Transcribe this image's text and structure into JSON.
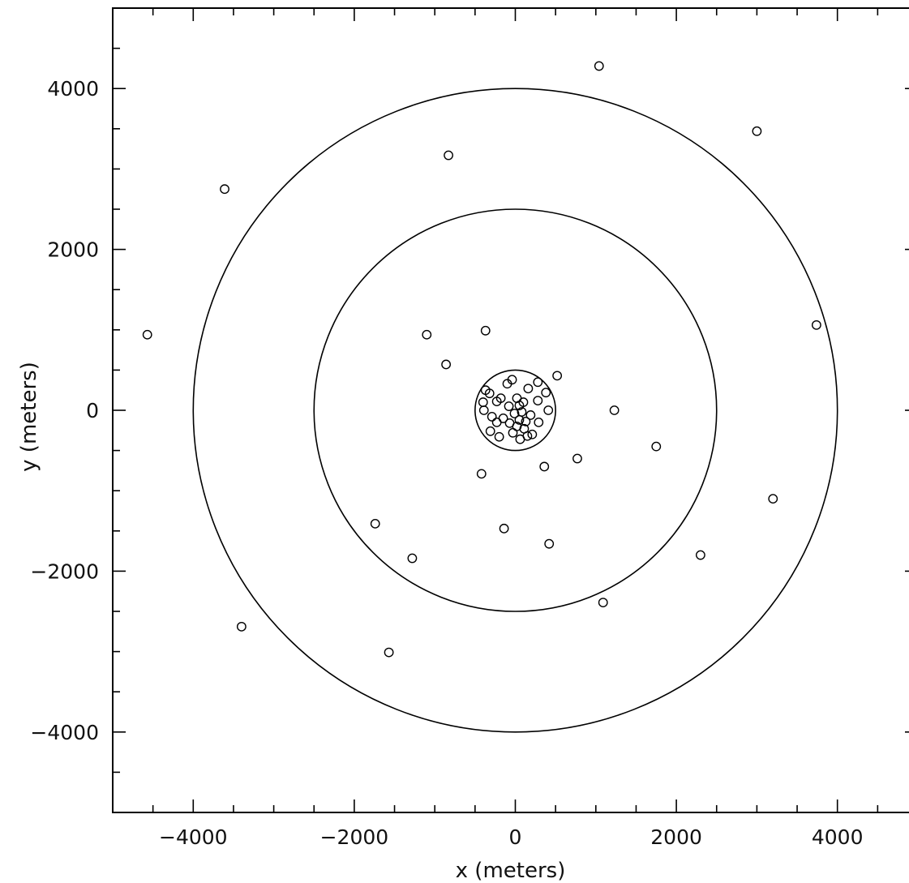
{
  "chart_data": {
    "type": "scatter",
    "xlabel": "x (meters)",
    "ylabel": "y (meters)",
    "xlim": [
      -5000,
      5000
    ],
    "ylim": [
      -5000,
      5000
    ],
    "x_major_ticks": [
      -4000,
      -2000,
      0,
      2000,
      4000
    ],
    "y_major_ticks": [
      -4000,
      -2000,
      0,
      2000,
      4000
    ],
    "x_tick_labels": [
      "−4000",
      "−2000",
      "0",
      "2000",
      "4000"
    ],
    "y_tick_labels": [
      "−4000",
      "−2000",
      "0",
      "2000",
      "4000"
    ],
    "minor_tick_step": 500,
    "grid": false,
    "rings": [
      {
        "cx": 0,
        "cy": 0,
        "r": 500
      },
      {
        "cx": 0,
        "cy": 0,
        "r": 2500
      },
      {
        "cx": 0,
        "cy": 0,
        "r": 4000
      }
    ],
    "points": [
      {
        "x": 1040,
        "y": 4280
      },
      {
        "x": 3000,
        "y": 3470
      },
      {
        "x": -830,
        "y": 3170
      },
      {
        "x": -3610,
        "y": 2750
      },
      {
        "x": 3740,
        "y": 1060
      },
      {
        "x": -4570,
        "y": 940
      },
      {
        "x": -1100,
        "y": 940
      },
      {
        "x": -370,
        "y": 990
      },
      {
        "x": -860,
        "y": 570
      },
      {
        "x": 520,
        "y": 430
      },
      {
        "x": 1230,
        "y": 0
      },
      {
        "x": 1750,
        "y": -450
      },
      {
        "x": 770,
        "y": -600
      },
      {
        "x": 360,
        "y": -700
      },
      {
        "x": -420,
        "y": -790
      },
      {
        "x": 3200,
        "y": -1100
      },
      {
        "x": -1740,
        "y": -1410
      },
      {
        "x": -140,
        "y": -1470
      },
      {
        "x": 420,
        "y": -1660
      },
      {
        "x": -1280,
        "y": -1840
      },
      {
        "x": 2300,
        "y": -1800
      },
      {
        "x": 1090,
        "y": -2390
      },
      {
        "x": -3400,
        "y": -2690
      },
      {
        "x": -1570,
        "y": -3010
      },
      {
        "x": -40,
        "y": 380
      },
      {
        "x": -100,
        "y": 330
      },
      {
        "x": 280,
        "y": 350
      },
      {
        "x": -370,
        "y": 250
      },
      {
        "x": -320,
        "y": 210
      },
      {
        "x": 160,
        "y": 270
      },
      {
        "x": 380,
        "y": 220
      },
      {
        "x": -180,
        "y": 150
      },
      {
        "x": 20,
        "y": 150
      },
      {
        "x": 280,
        "y": 120
      },
      {
        "x": -400,
        "y": 100
      },
      {
        "x": -230,
        "y": 110
      },
      {
        "x": 100,
        "y": 100
      },
      {
        "x": 50,
        "y": 60
      },
      {
        "x": -80,
        "y": 50
      },
      {
        "x": 410,
        "y": 0
      },
      {
        "x": -390,
        "y": 0
      },
      {
        "x": -290,
        "y": -80
      },
      {
        "x": 80,
        "y": -20
      },
      {
        "x": -10,
        "y": -40
      },
      {
        "x": 190,
        "y": -60
      },
      {
        "x": -150,
        "y": -100
      },
      {
        "x": -230,
        "y": -150
      },
      {
        "x": 50,
        "y": -120
      },
      {
        "x": 130,
        "y": -140
      },
      {
        "x": 290,
        "y": -150
      },
      {
        "x": -70,
        "y": -160
      },
      {
        "x": 20,
        "y": -200
      },
      {
        "x": -310,
        "y": -260
      },
      {
        "x": 110,
        "y": -230
      },
      {
        "x": -30,
        "y": -280
      },
      {
        "x": 210,
        "y": -300
      },
      {
        "x": -200,
        "y": -330
      },
      {
        "x": 60,
        "y": -360
      },
      {
        "x": 150,
        "y": -320
      }
    ]
  }
}
